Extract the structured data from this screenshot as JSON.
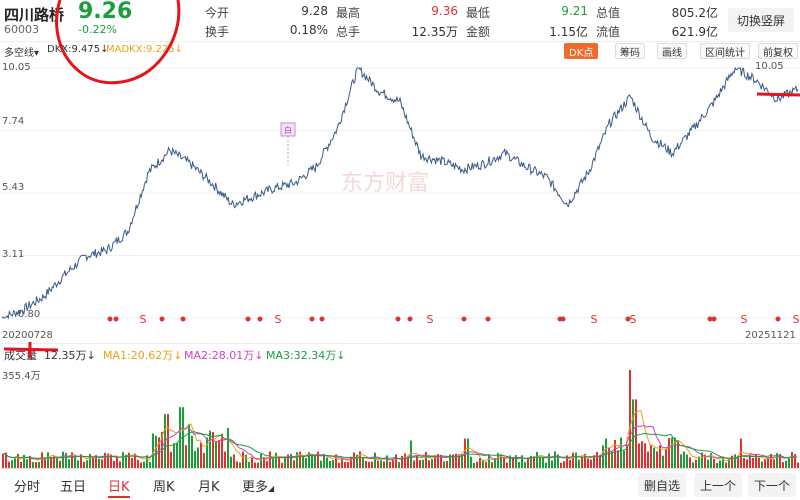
{
  "stock": {
    "name": "四川路桥",
    "code": "60003",
    "price": "9.26",
    "change": "-0.22%"
  },
  "quote": [
    {
      "label": "今开",
      "value": "9.28",
      "tone": "dark"
    },
    {
      "label": "最高",
      "value": "9.36",
      "tone": "red"
    },
    {
      "label": "最低",
      "value": "9.21",
      "tone": "green"
    },
    {
      "label": "总值",
      "value": "805.2亿",
      "tone": "dark"
    },
    {
      "label": "换手",
      "value": "0.18%",
      "tone": "dark"
    },
    {
      "label": "总手",
      "value": "12.35万",
      "tone": "dark"
    },
    {
      "label": "金额",
      "value": "1.15亿",
      "tone": "dark"
    },
    {
      "label": "流值",
      "value": "621.9亿",
      "tone": "dark"
    }
  ],
  "switch_label": "切换竖屏",
  "indicator": {
    "name": "多空线",
    "dkx": "DKX:9.475↓",
    "madkx": "MADKX:9.225↓",
    "dk_btn": "DK点",
    "tools": [
      "筹码",
      "画线",
      "区间统计",
      "前复权"
    ]
  },
  "chart": {
    "y_labels": [
      "10.05",
      "7.74",
      "5.43",
      "3.11",
      "0.80"
    ],
    "start_date": "20200728",
    "end_date": "20251121",
    "max_label": "10.05",
    "min_label": "0.80",
    "watermark": "东方财富",
    "signal_labels": [
      "S",
      "S",
      "S",
      "S",
      "S",
      "S",
      "S"
    ],
    "marker_b": "白",
    "line_color": "#3a5a88"
  },
  "chart_data": {
    "type": "line",
    "title": "",
    "x_range": [
      "20200728",
      "20251121"
    ],
    "ylim": [
      0.8,
      10.05
    ],
    "series": [
      {
        "name": "",
        "values": [
          0.8,
          1.1,
          1.6,
          2.4,
          3.1,
          3.3,
          4.0,
          6.2,
          7.0,
          6.5,
          5.8,
          5.0,
          5.3,
          5.6,
          5.8,
          6.4,
          7.8,
          10.05,
          9.2,
          8.8,
          6.8,
          6.6,
          6.3,
          6.5,
          6.9,
          6.4,
          6.0,
          5.0,
          6.2,
          8.0,
          9.0,
          7.5,
          6.9,
          7.8,
          8.8,
          10.05,
          9.6,
          8.9,
          9.26
        ]
      }
    ]
  },
  "volume": {
    "label": "成交量",
    "vol": "12.35万↓",
    "ma1": "MA1:20.62万↓",
    "ma2": "MA2:28.01万↓",
    "ma3": "MA3:32.34万↓",
    "max_label": "355.4万"
  },
  "nav": {
    "items": [
      "分时",
      "五日",
      "日K",
      "周K",
      "月K",
      "更多"
    ],
    "active": "日K",
    "delete_btn": "删自选",
    "prev_btn": "上一个",
    "next_btn": "下一个"
  },
  "colors": {
    "up": "#e0312f",
    "down": "#1a9e3a",
    "annotation": "#e3141b"
  }
}
